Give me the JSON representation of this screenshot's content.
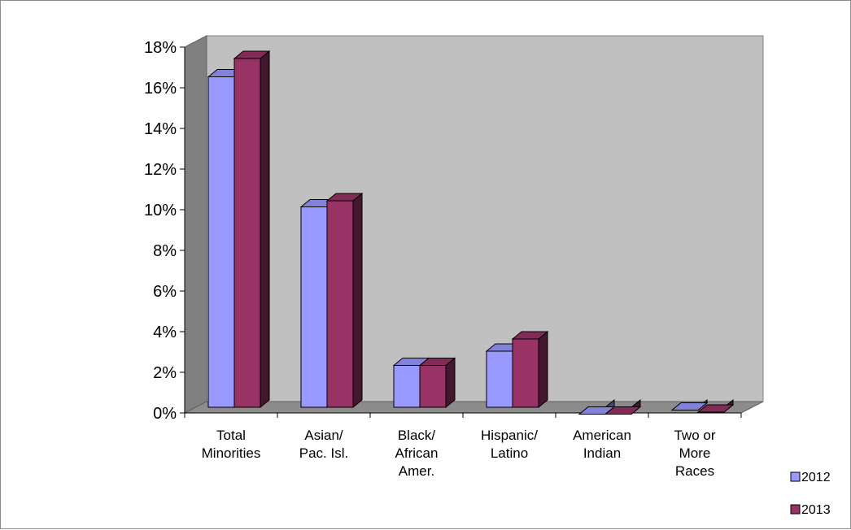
{
  "chart_data": {
    "type": "bar",
    "categories": [
      [
        "Total",
        "Minorities"
      ],
      [
        "Asian/",
        "Pac. Isl."
      ],
      [
        "Black/",
        "African",
        "Amer."
      ],
      [
        "Hispanic/",
        "Latino"
      ],
      [
        "American",
        "Indian"
      ],
      [
        "Two or",
        "More",
        "Races"
      ]
    ],
    "series": [
      {
        "name": "2012",
        "values": [
          16.9,
          10.5,
          2.7,
          3.4,
          0.3,
          0.5
        ],
        "color": "#9999ff"
      },
      {
        "name": "2013",
        "values": [
          17.8,
          10.8,
          2.7,
          4.0,
          0.3,
          0.4
        ],
        "color": "#993366"
      }
    ],
    "ylim": [
      0,
      18
    ],
    "ytick_labels": [
      "0%",
      "2%",
      "4%",
      "6%",
      "8%",
      "10%",
      "12%",
      "14%",
      "16%",
      "18%"
    ],
    "grid": false,
    "legend_position": "right",
    "style": "3d-clustered-column"
  }
}
